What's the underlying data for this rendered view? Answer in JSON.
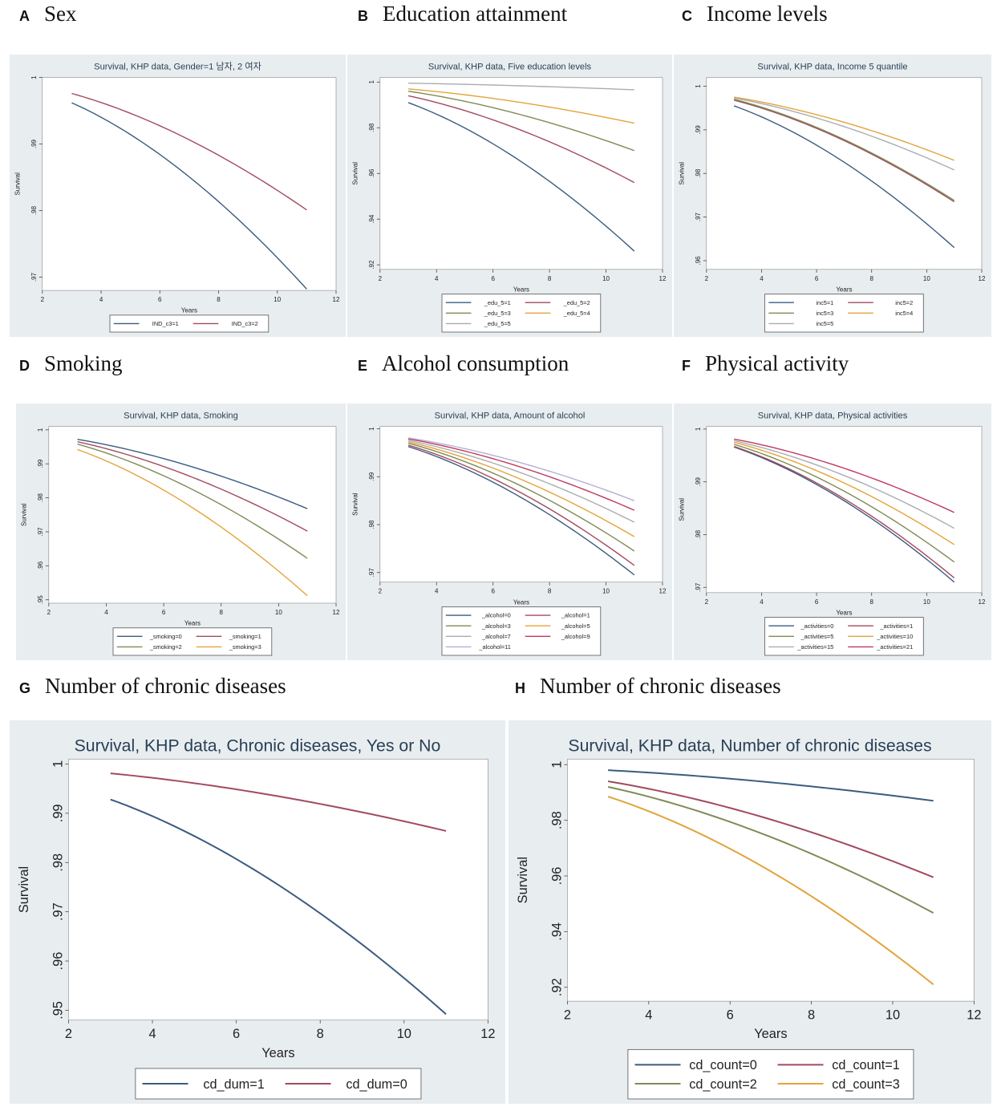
{
  "panel_labels": [
    {
      "letter": "A",
      "title": "Sex"
    },
    {
      "letter": "B",
      "title": "Education attainment"
    },
    {
      "letter": "C",
      "title": "Income levels"
    },
    {
      "letter": "D",
      "title": "Smoking"
    },
    {
      "letter": "E",
      "title": "Alcohol consumption"
    },
    {
      "letter": "F",
      "title": "Physical activity"
    },
    {
      "letter": "G",
      "title": "Number of chronic diseases"
    },
    {
      "letter": "H",
      "title": "Number of chronic diseases"
    }
  ],
  "colors": {
    "navy": "#3b5b7f",
    "maroon": "#a24a5e",
    "olive": "#7e8c55",
    "orange": "#e4a33a",
    "gray": "#a9adaf",
    "lilac": "#b4b0d6",
    "crimson": "#c0395e"
  },
  "chart_data": [
    {
      "type": "line",
      "title": "Survival, KHP data, Gender=1 남자, 2 여자",
      "xlabel": "Years",
      "ylabel": "Survival",
      "xlim": [
        2,
        12
      ],
      "ylim": [
        0.968,
        1.0
      ],
      "xticks": [
        2,
        4,
        6,
        8,
        10,
        12
      ],
      "yticks": [
        0.97,
        0.98,
        0.99,
        1
      ],
      "ytick_labels": [
        ".97",
        ".98",
        ".99",
        "1"
      ],
      "series": [
        {
          "name": "IND_c3=1",
          "color": "navy",
          "x": [
            3,
            11
          ],
          "start": 0.9962,
          "end": 0.9682
        },
        {
          "name": "IND_c3=2",
          "color": "maroon",
          "x": [
            3,
            11
          ],
          "start": 0.9976,
          "end": 0.9801
        }
      ],
      "legend_cols": 2
    },
    {
      "type": "line",
      "title": "Survival, KHP data, Five education levels",
      "xlabel": "Years",
      "ylabel": "Survival",
      "xlim": [
        2,
        12
      ],
      "ylim": [
        0.918,
        1.002
      ],
      "xticks": [
        2,
        4,
        6,
        8,
        10,
        12
      ],
      "yticks": [
        0.92,
        0.94,
        0.96,
        0.98,
        1
      ],
      "ytick_labels": [
        ".92",
        ".94",
        ".96",
        ".98",
        "1"
      ],
      "series": [
        {
          "name": "_edu_5=1",
          "color": "navy",
          "x": [
            3,
            11
          ],
          "start": 0.991,
          "end": 0.926
        },
        {
          "name": "_edu_5=2",
          "color": "maroon",
          "x": [
            3,
            11
          ],
          "start": 0.994,
          "end": 0.956
        },
        {
          "name": "_edu_5=3",
          "color": "olive",
          "x": [
            3,
            11
          ],
          "start": 0.996,
          "end": 0.97
        },
        {
          "name": "_edu_5=4",
          "color": "orange",
          "x": [
            3,
            11
          ],
          "start": 0.997,
          "end": 0.982
        },
        {
          "name": "_edu_5=5",
          "color": "gray",
          "x": [
            3,
            11
          ],
          "start": 0.9995,
          "end": 0.9966
        }
      ],
      "legend_cols": 2
    },
    {
      "type": "line",
      "title": "Survival, KHP data, Income 5 quantile",
      "xlabel": "Years",
      "ylabel": "Survival",
      "xlim": [
        2,
        12
      ],
      "ylim": [
        0.958,
        1.002
      ],
      "xticks": [
        2,
        4,
        6,
        8,
        10,
        12
      ],
      "yticks": [
        0.96,
        0.97,
        0.98,
        0.99,
        1
      ],
      "ytick_labels": [
        ".96",
        ".97",
        ".98",
        ".99",
        "1"
      ],
      "series": [
        {
          "name": "inc5=1",
          "color": "navy",
          "x": [
            3,
            11
          ],
          "start": 0.9955,
          "end": 0.963
        },
        {
          "name": "inc5=2",
          "color": "maroon",
          "x": [
            3,
            11
          ],
          "start": 0.9968,
          "end": 0.9735
        },
        {
          "name": "inc5=3",
          "color": "olive",
          "x": [
            3,
            11
          ],
          "start": 0.997,
          "end": 0.9738
        },
        {
          "name": "inc5=4",
          "color": "orange",
          "x": [
            3,
            11
          ],
          "start": 0.9975,
          "end": 0.983
        },
        {
          "name": "inc5=5",
          "color": "gray",
          "x": [
            3,
            11
          ],
          "start": 0.9973,
          "end": 0.9808
        }
      ],
      "legend_cols": 2
    },
    {
      "type": "line",
      "title": "Survival, KHP data, Smoking",
      "xlabel": "Years",
      "ylabel": "Survival",
      "xlim": [
        2,
        12
      ],
      "ylim": [
        0.949,
        1.001
      ],
      "xticks": [
        2,
        4,
        6,
        8,
        10,
        12
      ],
      "yticks": [
        0.95,
        0.96,
        0.97,
        0.98,
        0.99,
        1
      ],
      "ytick_labels": [
        ".95",
        ".96",
        ".97",
        ".98",
        ".99",
        "1"
      ],
      "series": [
        {
          "name": "_smoking=0",
          "color": "navy",
          "x": [
            3,
            11
          ],
          "start": 0.9972,
          "end": 0.9768
        },
        {
          "name": "_smoking=1",
          "color": "maroon",
          "x": [
            3,
            11
          ],
          "start": 0.9965,
          "end": 0.9702
        },
        {
          "name": "_smoking=2",
          "color": "olive",
          "x": [
            3,
            11
          ],
          "start": 0.9958,
          "end": 0.9622
        },
        {
          "name": "_smoking=3",
          "color": "orange",
          "x": [
            3,
            11
          ],
          "start": 0.9942,
          "end": 0.9512
        }
      ],
      "legend_cols": 2
    },
    {
      "type": "line",
      "title": "Survival, KHP data, Amount of alcohol",
      "xlabel": "Years",
      "ylabel": "Survival",
      "xlim": [
        2,
        12
      ],
      "ylim": [
        0.968,
        1.0005
      ],
      "xticks": [
        2,
        4,
        6,
        8,
        10,
        12
      ],
      "yticks": [
        0.97,
        0.98,
        0.99,
        1
      ],
      "ytick_labels": [
        ".97",
        ".98",
        ".99",
        "1"
      ],
      "series": [
        {
          "name": "_alcohol=0",
          "color": "navy",
          "x": [
            3,
            11
          ],
          "start": 0.9963,
          "end": 0.9695
        },
        {
          "name": "_alcohol=1",
          "color": "maroon",
          "x": [
            3,
            11
          ],
          "start": 0.9966,
          "end": 0.9715
        },
        {
          "name": "_alcohol=3",
          "color": "olive",
          "x": [
            3,
            11
          ],
          "start": 0.997,
          "end": 0.9745
        },
        {
          "name": "_alcohol=5",
          "color": "orange",
          "x": [
            3,
            11
          ],
          "start": 0.9973,
          "end": 0.9775
        },
        {
          "name": "_alcohol=7",
          "color": "gray",
          "x": [
            3,
            11
          ],
          "start": 0.9976,
          "end": 0.9805
        },
        {
          "name": "_alcohol=9",
          "color": "crimson",
          "x": [
            3,
            11
          ],
          "start": 0.9979,
          "end": 0.983
        },
        {
          "name": "_alcohol=11",
          "color": "lilac",
          "x": [
            3,
            11
          ],
          "start": 0.9981,
          "end": 0.985
        }
      ],
      "legend_cols": 2
    },
    {
      "type": "line",
      "title": "Survival, KHP data, Physical activities",
      "xlabel": "Years",
      "ylabel": "Survival",
      "xlim": [
        2,
        12
      ],
      "ylim": [
        0.969,
        1.0005
      ],
      "xticks": [
        2,
        4,
        6,
        8,
        10,
        12
      ],
      "yticks": [
        0.97,
        0.98,
        0.99,
        1
      ],
      "ytick_labels": [
        ".97",
        ".98",
        ".99",
        "1"
      ],
      "series": [
        {
          "name": "_activities=0",
          "color": "navy",
          "x": [
            3,
            11
          ],
          "start": 0.9966,
          "end": 0.971
        },
        {
          "name": "_activities=1",
          "color": "maroon",
          "x": [
            3,
            11
          ],
          "start": 0.9967,
          "end": 0.9718
        },
        {
          "name": "_activities=5",
          "color": "olive",
          "x": [
            3,
            11
          ],
          "start": 0.9971,
          "end": 0.9748
        },
        {
          "name": "_activities=10",
          "color": "orange",
          "x": [
            3,
            11
          ],
          "start": 0.9975,
          "end": 0.9781
        },
        {
          "name": "_activities=15",
          "color": "gray",
          "x": [
            3,
            11
          ],
          "start": 0.9978,
          "end": 0.9812
        },
        {
          "name": "_activities=21",
          "color": "crimson",
          "x": [
            3,
            11
          ],
          "start": 0.9981,
          "end": 0.9842
        }
      ],
      "legend_cols": 2
    },
    {
      "type": "line",
      "title": "Survival, KHP data, Chronic diseases, Yes or No",
      "xlabel": "Years",
      "ylabel": "Survival",
      "xlim": [
        2,
        12
      ],
      "ylim": [
        0.948,
        1.001
      ],
      "xticks": [
        2,
        4,
        6,
        8,
        10,
        12
      ],
      "yticks": [
        0.95,
        0.96,
        0.97,
        0.98,
        0.99,
        1
      ],
      "ytick_labels": [
        ".95",
        ".96",
        ".97",
        ".98",
        ".99",
        "1"
      ],
      "series": [
        {
          "name": "cd_dum=1",
          "color": "navy",
          "x": [
            3,
            11
          ],
          "start": 0.9928,
          "end": 0.9492
        },
        {
          "name": "cd_dum=0",
          "color": "maroon",
          "x": [
            3,
            11
          ],
          "start": 0.9981,
          "end": 0.9864
        }
      ],
      "legend_cols": 2
    },
    {
      "type": "line",
      "title": "Survival, KHP data, Number of chronic diseases",
      "xlabel": "Years",
      "ylabel": "Survival",
      "xlim": [
        2,
        12
      ],
      "ylim": [
        0.915,
        1.002
      ],
      "xticks": [
        2,
        4,
        6,
        8,
        10,
        12
      ],
      "yticks": [
        0.92,
        0.94,
        0.96,
        0.98,
        1
      ],
      "ytick_labels": [
        ".92",
        ".94",
        ".96",
        ".98",
        "1"
      ],
      "series": [
        {
          "name": "cd_count=0",
          "color": "navy",
          "x": [
            3,
            11
          ],
          "start": 0.998,
          "end": 0.987
        },
        {
          "name": "cd_count=1",
          "color": "maroon",
          "x": [
            3,
            11
          ],
          "start": 0.994,
          "end": 0.9595
        },
        {
          "name": "cd_count=2",
          "color": "olive",
          "x": [
            3,
            11
          ],
          "start": 0.992,
          "end": 0.9467
        },
        {
          "name": "cd_count=3",
          "color": "orange",
          "x": [
            3,
            11
          ],
          "start": 0.9885,
          "end": 0.921
        }
      ],
      "legend_cols": 2
    }
  ]
}
